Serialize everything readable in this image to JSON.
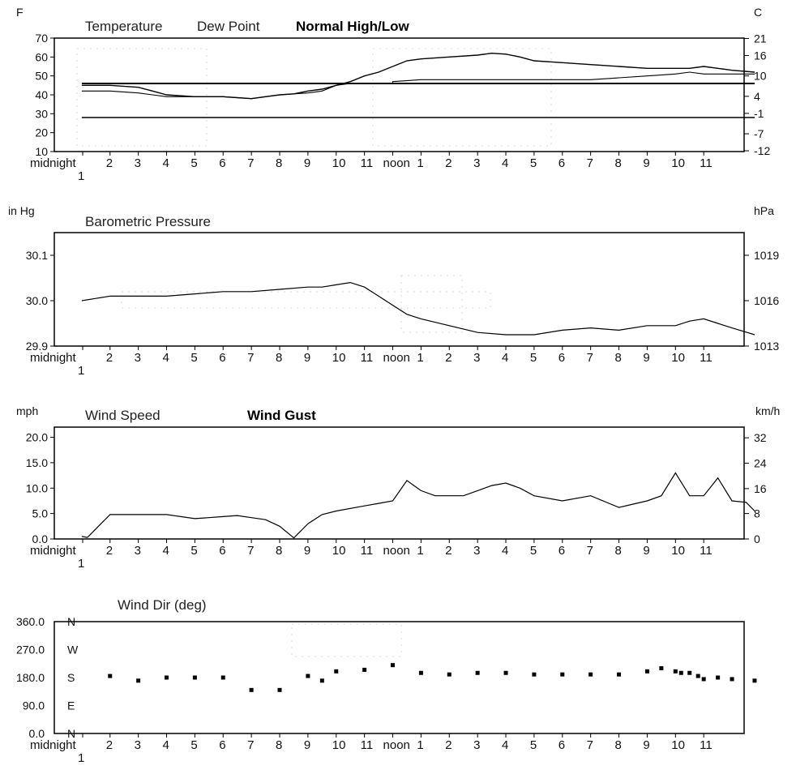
{
  "colors": {
    "line": "#000000",
    "frame": "#000000",
    "faint": "#d9d9d9",
    "background": "#ffffff"
  },
  "x_labels": [
    "midnight",
    "2",
    "3",
    "4",
    "5",
    "6",
    "7",
    "8",
    "9",
    "10",
    "11",
    "noon",
    "1",
    "2",
    "3",
    "4",
    "5",
    "6",
    "7",
    "8",
    "9",
    "10",
    "11"
  ],
  "x_sublabel": "1",
  "chart_data": [
    {
      "type": "line",
      "legend": [
        "Temperature",
        "Dew Point",
        "Normal High/Low"
      ],
      "left_unit": "F",
      "right_unit": "C",
      "ylim": [
        10,
        70
      ],
      "y_ticks": [
        "70",
        "60",
        "50",
        "40",
        "30",
        "20",
        "10"
      ],
      "y_ticks_right": [
        "21",
        "16",
        "10",
        "4",
        "-1",
        "-7",
        "-12"
      ],
      "series": [
        {
          "name": "Temperature",
          "x": [
            0,
            1,
            2,
            2.5,
            3,
            4,
            5,
            5.5,
            6,
            6.5,
            7,
            7.5,
            8,
            8.5,
            9,
            9.5,
            10,
            10.5,
            11,
            11.5,
            12,
            13,
            14,
            14.5,
            15,
            15.5,
            16,
            17,
            18,
            19,
            20,
            21,
            21.5,
            22,
            22.5,
            23,
            23.8
          ],
          "y": [
            45,
            45,
            44,
            42,
            40,
            39,
            39,
            38.5,
            38,
            39,
            40,
            40.5,
            42,
            43,
            45,
            47,
            50,
            52,
            55,
            58,
            59,
            60,
            61,
            62,
            61.5,
            60,
            58,
            57,
            56,
            55,
            54,
            54,
            54,
            55,
            54,
            53,
            52
          ]
        },
        {
          "name": "Dew Point",
          "x": [
            0,
            1,
            2,
            2.5,
            3,
            4,
            5,
            5.5,
            6,
            6.5,
            7,
            7.5,
            8,
            8.5,
            9,
            9.5,
            10,
            11,
            11,
            12,
            13,
            14,
            15,
            16,
            17,
            18,
            19,
            20,
            21,
            21.5,
            22,
            23,
            23.8
          ],
          "y": [
            42,
            42,
            41,
            40,
            39,
            39,
            39,
            38.5,
            38,
            39,
            40,
            40.5,
            41,
            42,
            45,
            46,
            46,
            46,
            47,
            48,
            48,
            48,
            48,
            48,
            48,
            48,
            49,
            50,
            51,
            52,
            51,
            51,
            51
          ]
        },
        {
          "name": "Normal High",
          "x": [
            0,
            23.8
          ],
          "y": [
            46,
            46
          ]
        },
        {
          "name": "Normal Low",
          "x": [
            0,
            23.8
          ],
          "y": [
            28,
            28
          ]
        }
      ]
    },
    {
      "type": "line",
      "legend": [
        "Barometric Pressure"
      ],
      "left_unit": "in Hg",
      "right_unit": "hPa",
      "ylim": [
        29.9,
        30.15
      ],
      "y_ticks": [
        "30.1",
        "30.0",
        "29.9"
      ],
      "y_ticks_right": [
        "1019",
        "1016",
        "1013"
      ],
      "series": [
        {
          "name": "Barometric Pressure",
          "x": [
            0,
            0.5,
            1,
            2,
            3,
            4,
            5,
            6,
            7,
            8,
            8.5,
            9,
            9.5,
            10,
            10.5,
            11,
            11.5,
            12,
            13,
            14,
            15,
            16,
            17,
            18,
            19,
            20,
            21,
            21.5,
            22,
            22.5,
            23,
            23.8
          ],
          "y": [
            30.0,
            30.005,
            30.01,
            30.01,
            30.01,
            30.015,
            30.02,
            30.02,
            30.025,
            30.03,
            30.03,
            30.035,
            30.04,
            30.03,
            30.01,
            29.99,
            29.97,
            29.96,
            29.945,
            29.93,
            29.925,
            29.925,
            29.935,
            29.94,
            29.935,
            29.945,
            29.945,
            29.955,
            29.96,
            29.95,
            29.94,
            29.925
          ]
        }
      ]
    },
    {
      "type": "line",
      "legend": [
        "Wind Speed",
        "Wind Gust"
      ],
      "left_unit": "mph",
      "right_unit": "km/h",
      "ylim": [
        0,
        22
      ],
      "y_ticks": [
        "20.0",
        "15.0",
        "10.0",
        "5.0",
        "0.0"
      ],
      "y_ticks_right": [
        "32",
        "24",
        "16",
        "8",
        "0"
      ],
      "series": [
        {
          "name": "Wind Speed",
          "x": [
            0,
            0.2,
            1,
            2,
            3,
            4,
            5,
            5.5,
            6,
            6.5,
            7,
            7.5,
            8,
            8.5,
            9,
            10,
            10.5,
            11,
            11.5,
            12,
            12.5,
            13,
            13.5,
            14,
            14.5,
            15,
            15.5,
            16,
            17,
            18,
            19,
            20,
            20.5,
            21,
            21.5,
            22,
            22.5,
            23,
            23.5,
            23.8
          ],
          "y": [
            0.5,
            0.3,
            4.8,
            4.8,
            4.8,
            4,
            4.4,
            4.6,
            4.2,
            3.8,
            2.5,
            0.2,
            3,
            4.8,
            5.5,
            6.5,
            7,
            7.5,
            11.5,
            9.5,
            8.5,
            8.5,
            8.5,
            9.5,
            10.5,
            11,
            10,
            8.5,
            7.5,
            8.5,
            6.2,
            7.5,
            8.5,
            13,
            8.5,
            8.5,
            12,
            7.5,
            7.2,
            5.5
          ]
        }
      ]
    },
    {
      "type": "scatter",
      "legend": [
        "Wind Dir (deg)"
      ],
      "ylim": [
        0,
        360
      ],
      "y_ticks": [
        "360.0",
        "270.0",
        "180.0",
        "90.0",
        "0.0"
      ],
      "direction_labels": [
        "N",
        "W",
        "S",
        "E",
        "N"
      ],
      "series": [
        {
          "name": "Wind Dir (deg)",
          "x": [
            1,
            2,
            3,
            4,
            5,
            6,
            7,
            8,
            8.5,
            9,
            10,
            11,
            12,
            13,
            14,
            15,
            16,
            17,
            18,
            19,
            20,
            20.5,
            21,
            21.2,
            21.5,
            21.8,
            22,
            22.5,
            23,
            23.8
          ],
          "y": [
            185,
            170,
            180,
            180,
            180,
            140,
            140,
            185,
            170,
            200,
            205,
            220,
            195,
            190,
            195,
            195,
            190,
            190,
            190,
            190,
            200,
            210,
            200,
            195,
            195,
            185,
            175,
            180,
            175,
            170
          ]
        }
      ]
    }
  ]
}
